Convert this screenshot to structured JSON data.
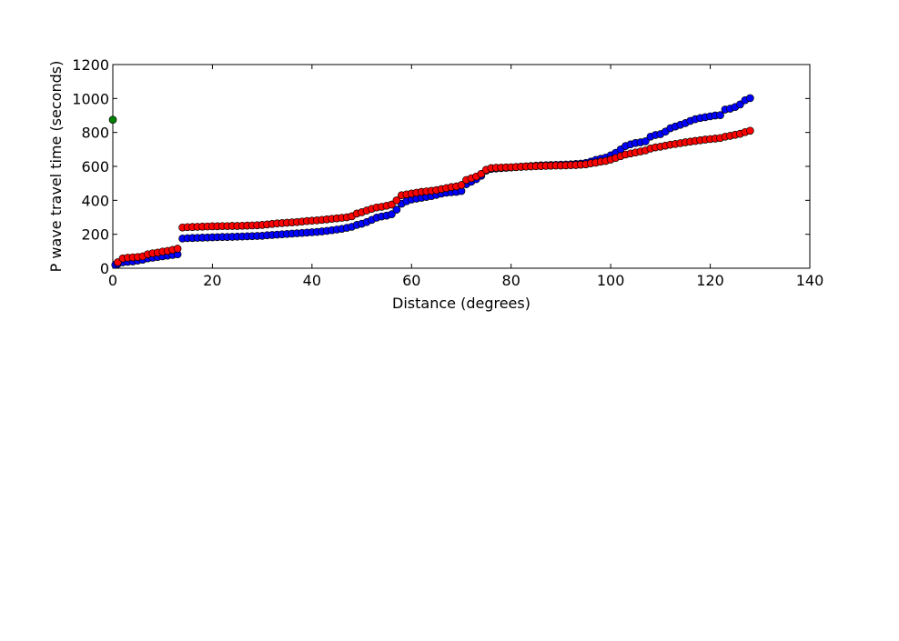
{
  "chart_data": {
    "type": "scatter",
    "xlabel": "Distance (degrees)",
    "ylabel": "P wave travel time (seconds)",
    "xlim": [
      0,
      140
    ],
    "ylim": [
      0,
      1200
    ],
    "xticks": [
      "0",
      "20",
      "40",
      "60",
      "80",
      "100",
      "120",
      "140"
    ],
    "yticks": [
      "0",
      "200",
      "400",
      "600",
      "800",
      "1000",
      "1200"
    ],
    "grid": false,
    "colors": {
      "series_blue": "#0000ff",
      "series_red": "#ff0000",
      "series_green": "#008000"
    },
    "series": [
      {
        "color": "#0000ff",
        "points": [
          [
            0.5,
            20
          ],
          [
            1,
            25
          ],
          [
            2,
            35
          ],
          [
            3,
            38
          ],
          [
            4,
            40
          ],
          [
            5,
            45
          ],
          [
            6,
            50
          ],
          [
            7,
            58
          ],
          [
            8,
            62
          ],
          [
            9,
            66
          ],
          [
            10,
            70
          ],
          [
            11,
            74
          ],
          [
            12,
            78
          ],
          [
            13,
            82
          ],
          [
            14,
            175
          ],
          [
            15,
            177
          ],
          [
            16,
            178
          ],
          [
            17,
            179
          ],
          [
            18,
            180
          ],
          [
            19,
            181
          ],
          [
            20,
            182
          ],
          [
            21,
            183
          ],
          [
            22,
            184
          ],
          [
            23,
            184
          ],
          [
            24,
            185
          ],
          [
            25,
            186
          ],
          [
            26,
            187
          ],
          [
            27,
            188
          ],
          [
            28,
            189
          ],
          [
            29,
            190
          ],
          [
            30,
            191
          ],
          [
            31,
            194
          ],
          [
            32,
            196
          ],
          [
            33,
            198
          ],
          [
            34,
            200
          ],
          [
            35,
            202
          ],
          [
            36,
            204
          ],
          [
            37,
            206
          ],
          [
            38,
            208
          ],
          [
            39,
            210
          ],
          [
            40,
            212
          ],
          [
            41,
            214
          ],
          [
            42,
            217
          ],
          [
            43,
            220
          ],
          [
            44,
            224
          ],
          [
            45,
            228
          ],
          [
            46,
            232
          ],
          [
            47,
            238
          ],
          [
            48,
            244
          ],
          [
            49,
            255
          ],
          [
            50,
            262
          ],
          [
            51,
            272
          ],
          [
            52,
            285
          ],
          [
            53,
            298
          ],
          [
            54,
            305
          ],
          [
            55,
            310
          ],
          [
            56,
            318
          ],
          [
            57,
            345
          ],
          [
            58,
            380
          ],
          [
            59,
            395
          ],
          [
            60,
            405
          ],
          [
            61,
            410
          ],
          [
            62,
            415
          ],
          [
            63,
            420
          ],
          [
            64,
            425
          ],
          [
            65,
            432
          ],
          [
            66,
            440
          ],
          [
            67,
            445
          ],
          [
            68,
            448
          ],
          [
            69,
            450
          ],
          [
            70,
            455
          ],
          [
            71,
            495
          ],
          [
            72,
            510
          ],
          [
            73,
            525
          ],
          [
            74,
            545
          ],
          [
            75,
            575
          ],
          [
            76,
            585
          ],
          [
            77,
            588
          ],
          [
            78,
            590
          ],
          [
            79,
            592
          ],
          [
            80,
            594
          ],
          [
            81,
            596
          ],
          [
            82,
            598
          ],
          [
            83,
            600
          ],
          [
            84,
            602
          ],
          [
            85,
            604
          ],
          [
            86,
            606
          ],
          [
            87,
            607
          ],
          [
            88,
            608
          ],
          [
            89,
            609
          ],
          [
            90,
            610
          ],
          [
            91,
            611
          ],
          [
            92,
            612
          ],
          [
            93,
            614
          ],
          [
            94,
            616
          ],
          [
            95,
            620
          ],
          [
            96,
            628
          ],
          [
            97,
            638
          ],
          [
            98,
            645
          ],
          [
            99,
            652
          ],
          [
            100,
            665
          ],
          [
            101,
            680
          ],
          [
            102,
            700
          ],
          [
            103,
            720
          ],
          [
            104,
            730
          ],
          [
            105,
            738
          ],
          [
            106,
            742
          ],
          [
            107,
            748
          ],
          [
            108,
            775
          ],
          [
            109,
            785
          ],
          [
            110,
            790
          ],
          [
            111,
            805
          ],
          [
            112,
            825
          ],
          [
            113,
            835
          ],
          [
            114,
            845
          ],
          [
            115,
            855
          ],
          [
            116,
            868
          ],
          [
            117,
            878
          ],
          [
            118,
            885
          ],
          [
            119,
            890
          ],
          [
            120,
            895
          ],
          [
            121,
            900
          ],
          [
            122,
            902
          ],
          [
            123,
            935
          ],
          [
            124,
            940
          ],
          [
            125,
            950
          ],
          [
            126,
            965
          ],
          [
            127,
            990
          ],
          [
            128,
            1002
          ]
        ]
      },
      {
        "color": "#ff0000",
        "points": [
          [
            1,
            35
          ],
          [
            2,
            58
          ],
          [
            3,
            62
          ],
          [
            4,
            64
          ],
          [
            5,
            66
          ],
          [
            6,
            70
          ],
          [
            7,
            82
          ],
          [
            8,
            88
          ],
          [
            9,
            92
          ],
          [
            10,
            98
          ],
          [
            11,
            102
          ],
          [
            12,
            108
          ],
          [
            13,
            115
          ],
          [
            14,
            240
          ],
          [
            15,
            242
          ],
          [
            16,
            243
          ],
          [
            17,
            244
          ],
          [
            18,
            245
          ],
          [
            19,
            246
          ],
          [
            20,
            247
          ],
          [
            21,
            247
          ],
          [
            22,
            248
          ],
          [
            23,
            248
          ],
          [
            24,
            249
          ],
          [
            25,
            249
          ],
          [
            26,
            250
          ],
          [
            27,
            251
          ],
          [
            28,
            252
          ],
          [
            29,
            253
          ],
          [
            30,
            255
          ],
          [
            31,
            258
          ],
          [
            32,
            261
          ],
          [
            33,
            264
          ],
          [
            34,
            266
          ],
          [
            35,
            268
          ],
          [
            36,
            270
          ],
          [
            37,
            272
          ],
          [
            38,
            275
          ],
          [
            39,
            278
          ],
          [
            40,
            280
          ],
          [
            41,
            282
          ],
          [
            42,
            285
          ],
          [
            43,
            288
          ],
          [
            44,
            291
          ],
          [
            45,
            294
          ],
          [
            46,
            297
          ],
          [
            47,
            300
          ],
          [
            48,
            306
          ],
          [
            49,
            322
          ],
          [
            50,
            330
          ],
          [
            51,
            340
          ],
          [
            52,
            350
          ],
          [
            53,
            358
          ],
          [
            54,
            362
          ],
          [
            55,
            368
          ],
          [
            56,
            375
          ],
          [
            57,
            400
          ],
          [
            58,
            430
          ],
          [
            59,
            435
          ],
          [
            60,
            440
          ],
          [
            61,
            445
          ],
          [
            62,
            450
          ],
          [
            63,
            453
          ],
          [
            64,
            456
          ],
          [
            65,
            460
          ],
          [
            66,
            466
          ],
          [
            67,
            472
          ],
          [
            68,
            478
          ],
          [
            69,
            482
          ],
          [
            70,
            490
          ],
          [
            71,
            520
          ],
          [
            72,
            530
          ],
          [
            73,
            540
          ],
          [
            74,
            556
          ],
          [
            75,
            580
          ],
          [
            76,
            590
          ],
          [
            77,
            592
          ],
          [
            78,
            593
          ],
          [
            79,
            594
          ],
          [
            80,
            595
          ],
          [
            81,
            596
          ],
          [
            82,
            598
          ],
          [
            83,
            599
          ],
          [
            84,
            600
          ],
          [
            85,
            601
          ],
          [
            86,
            602
          ],
          [
            87,
            603
          ],
          [
            88,
            604
          ],
          [
            89,
            605
          ],
          [
            90,
            605
          ],
          [
            91,
            606
          ],
          [
            92,
            607
          ],
          [
            93,
            608
          ],
          [
            94,
            610
          ],
          [
            95,
            612
          ],
          [
            96,
            618
          ],
          [
            97,
            622
          ],
          [
            98,
            628
          ],
          [
            99,
            632
          ],
          [
            100,
            640
          ],
          [
            101,
            650
          ],
          [
            102,
            660
          ],
          [
            103,
            670
          ],
          [
            104,
            676
          ],
          [
            105,
            682
          ],
          [
            106,
            688
          ],
          [
            107,
            694
          ],
          [
            108,
            705
          ],
          [
            109,
            712
          ],
          [
            110,
            716
          ],
          [
            111,
            722
          ],
          [
            112,
            728
          ],
          [
            113,
            732
          ],
          [
            114,
            737
          ],
          [
            115,
            742
          ],
          [
            116,
            746
          ],
          [
            117,
            750
          ],
          [
            118,
            754
          ],
          [
            119,
            758
          ],
          [
            120,
            761
          ],
          [
            121,
            764
          ],
          [
            122,
            767
          ],
          [
            123,
            775
          ],
          [
            124,
            780
          ],
          [
            125,
            786
          ],
          [
            126,
            792
          ],
          [
            127,
            802
          ],
          [
            128,
            810
          ]
        ]
      },
      {
        "color": "#008000",
        "points": [
          [
            0,
            875
          ]
        ]
      }
    ]
  }
}
